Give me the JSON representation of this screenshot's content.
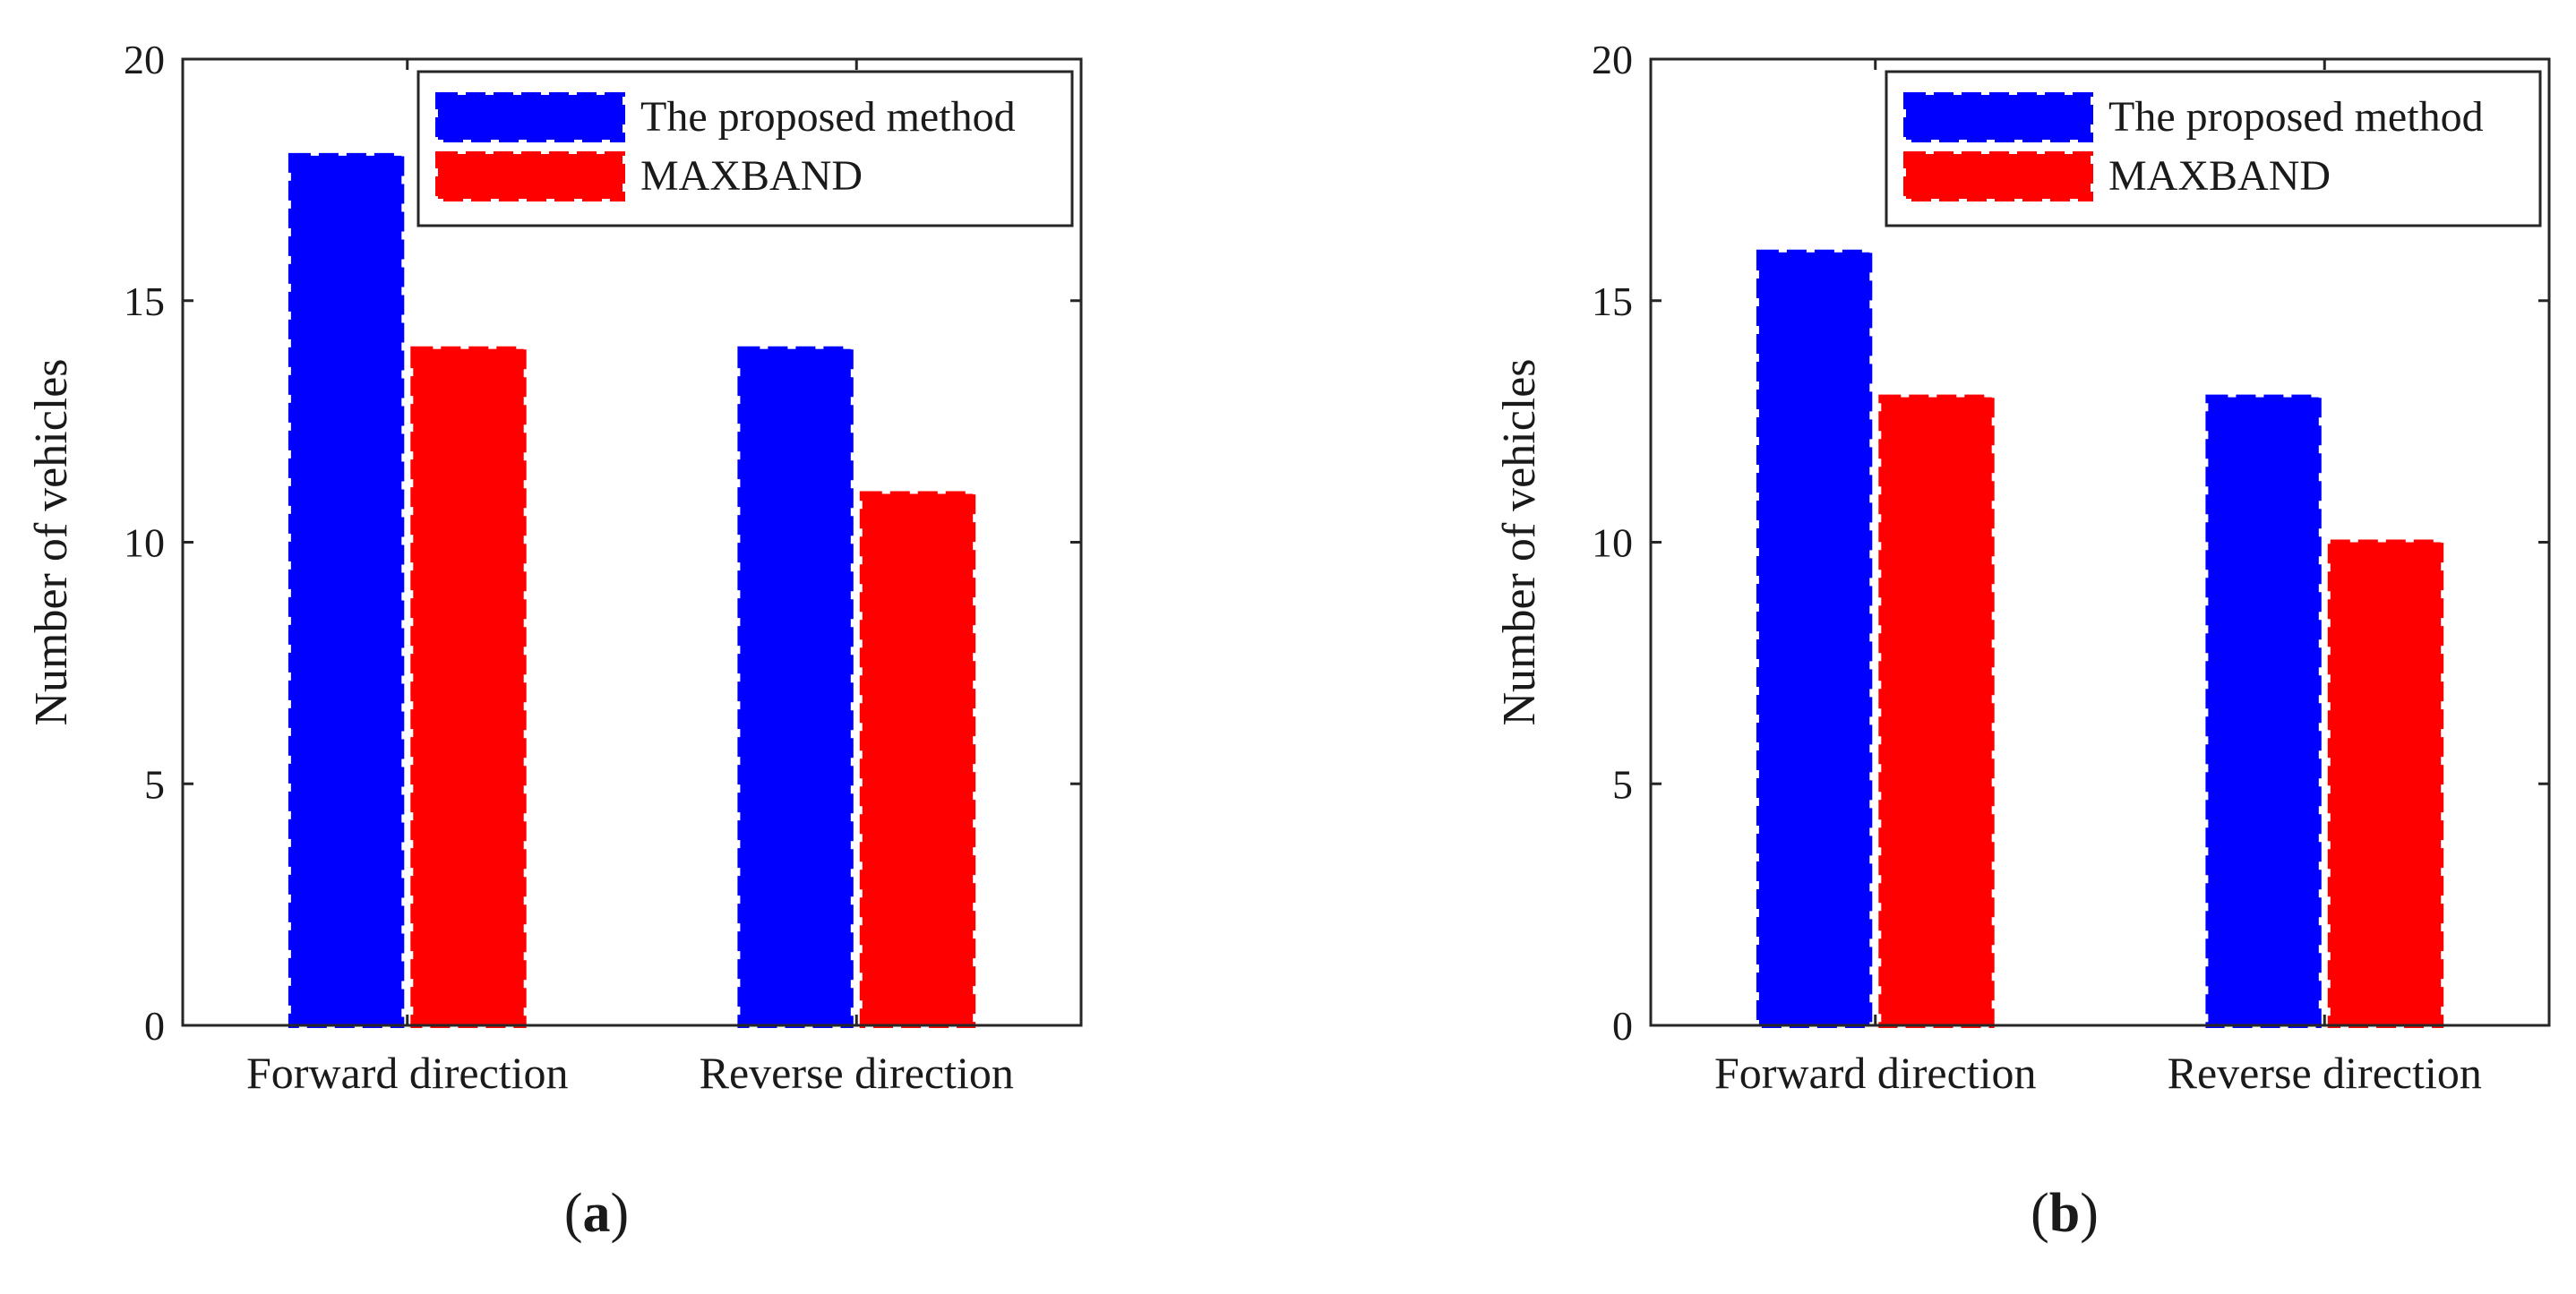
{
  "chart_data": [
    {
      "type": "bar",
      "panel_label": "a",
      "categories": [
        "Forward direction",
        "Reverse direction"
      ],
      "series": [
        {
          "name": "The proposed method",
          "values": [
            18,
            14
          ],
          "color": "#0000ff"
        },
        {
          "name": "MAXBAND",
          "values": [
            14,
            11
          ],
          "color": "#ff0000"
        }
      ],
      "title": "",
      "xlabel": "",
      "ylabel": "Number of vehicles",
      "ylim": [
        0,
        20
      ],
      "yticks": [
        0,
        5,
        10,
        15,
        20
      ],
      "grid": false,
      "legend_position": "top-right"
    },
    {
      "type": "bar",
      "panel_label": "b",
      "categories": [
        "Forward direction",
        "Reverse direction"
      ],
      "series": [
        {
          "name": "The proposed method",
          "values": [
            16,
            13
          ],
          "color": "#0000ff"
        },
        {
          "name": "MAXBAND",
          "values": [
            13,
            10
          ],
          "color": "#ff0000"
        }
      ],
      "title": "",
      "xlabel": "",
      "ylabel": "Number of vehicles",
      "ylim": [
        0,
        20
      ],
      "yticks": [
        0,
        5,
        10,
        15,
        20
      ],
      "grid": false,
      "legend_position": "top-right"
    }
  ]
}
